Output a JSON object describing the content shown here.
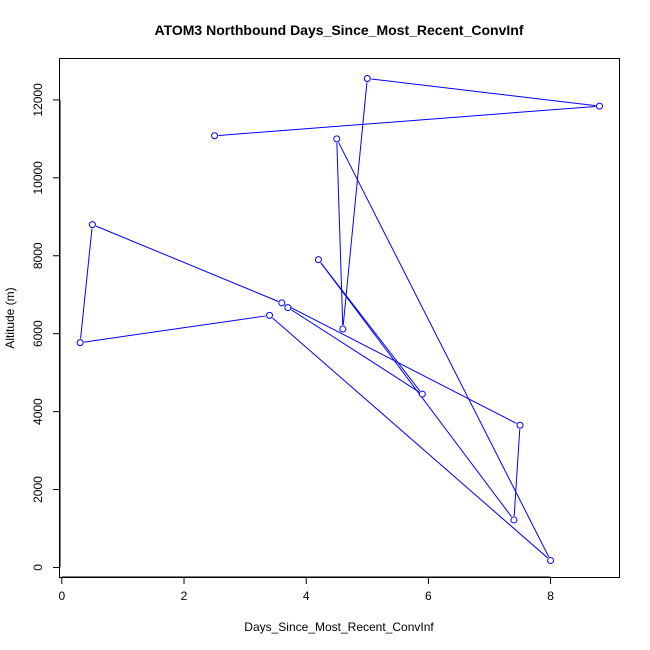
{
  "chart_data": {
    "type": "line",
    "title": "ATOM3 Northbound Days_Since_Most_Recent_ConvInf",
    "xlabel": "Days_Since_Most_Recent_ConvInf",
    "ylabel": "Altitude (m)",
    "xlim": [
      -0.03,
      9.12
    ],
    "ylim": [
      -245,
      13050
    ],
    "xticks": [
      0,
      2,
      4,
      6,
      8
    ],
    "yticks": [
      0,
      2000,
      4000,
      6000,
      8000,
      10000,
      12000
    ],
    "colors": {
      "series": "#0000ff",
      "frame": "#000000"
    },
    "series": [
      {
        "markers": "open-circle",
        "x": [
          2.5,
          8.8,
          5.0,
          4.6,
          4.5,
          8.0,
          3.4,
          0.3,
          0.5,
          3.6,
          7.5,
          7.4,
          4.2,
          5.9,
          3.7
        ],
        "y": [
          11080,
          11840,
          12550,
          6120,
          11000,
          180,
          6470,
          5770,
          8800,
          6790,
          3650,
          1220,
          7900,
          4450,
          6670
        ]
      }
    ]
  }
}
